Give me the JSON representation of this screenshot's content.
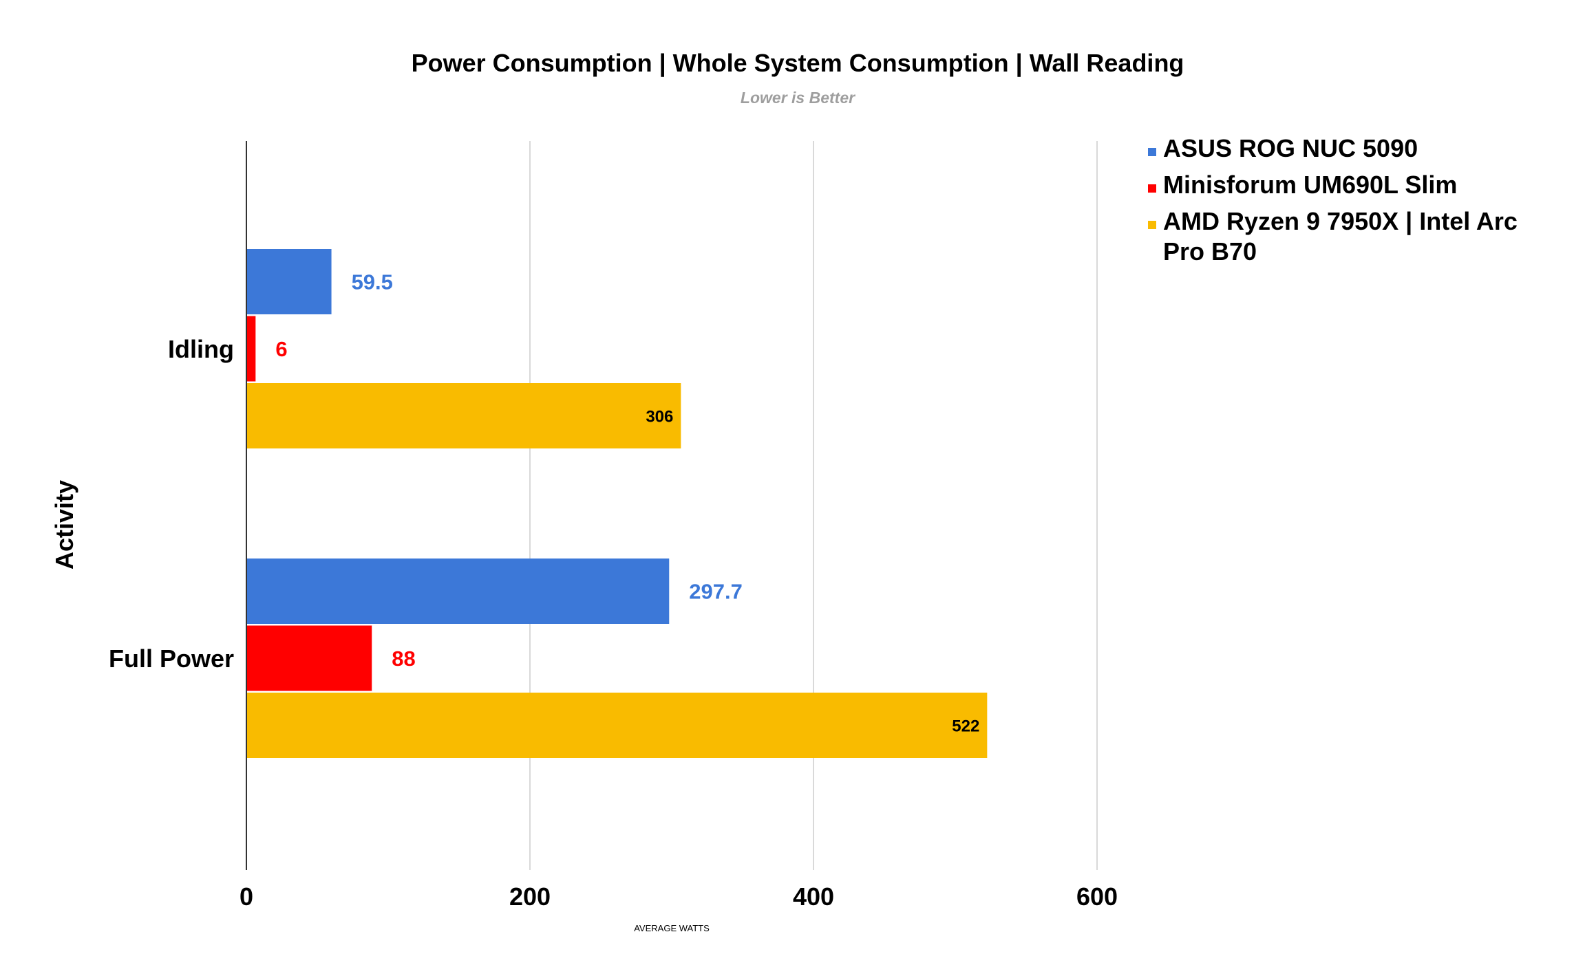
{
  "chart_data": {
    "type": "bar",
    "orientation": "horizontal",
    "title": "Power Consumption | Whole System Consumption | Wall Reading",
    "subtitle": "Lower is Better",
    "xlabel": "AVERAGE WATTS",
    "ylabel": "Activity",
    "xlim": [
      0,
      600
    ],
    "xticks": [
      "0",
      "200",
      "400",
      "600"
    ],
    "grid": true,
    "legend_position": "right",
    "categories": [
      "Idling",
      "Full Power"
    ],
    "series": [
      {
        "name": "ASUS ROG NUC 5090",
        "color": "#3c78d8",
        "values": [
          59.5,
          297.7
        ],
        "labels": [
          "59.5",
          "297.7"
        ]
      },
      {
        "name": "Minisforum UM690L Slim",
        "color": "#ff0000",
        "values": [
          6,
          88
        ],
        "labels": [
          "6",
          "88"
        ]
      },
      {
        "name": "AMD Ryzen 9 7950X | Intel Arc Pro B70",
        "color": "#f9bb00",
        "values": [
          306,
          522
        ],
        "labels": [
          "306",
          "522"
        ]
      }
    ]
  }
}
